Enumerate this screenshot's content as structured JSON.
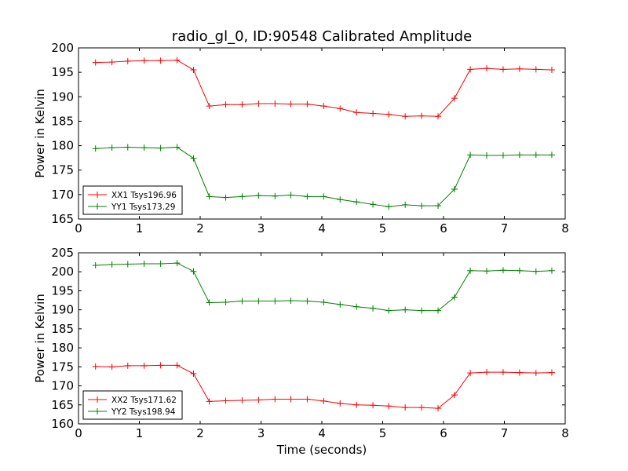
{
  "figure": {
    "title": "radio_gl_0, ID:90548 Calibrated Amplitude",
    "xlabel": "Time (seconds)"
  },
  "chart_data": [
    {
      "type": "line",
      "title": "radio_gl_0, ID:90548 Calibrated Amplitude",
      "xlabel": "",
      "ylabel": "Power in Kelvin",
      "xlim": [
        0,
        8
      ],
      "ylim": [
        165,
        200
      ],
      "xticks": [
        0,
        1,
        2,
        3,
        4,
        5,
        6,
        7,
        8
      ],
      "yticks": [
        165,
        170,
        175,
        180,
        185,
        190,
        195,
        200
      ],
      "legend_position": "lower-left",
      "grid": false,
      "x": [
        0.28,
        0.55,
        0.81,
        1.08,
        1.35,
        1.62,
        1.89,
        2.15,
        2.42,
        2.69,
        2.96,
        3.23,
        3.49,
        3.76,
        4.03,
        4.3,
        4.57,
        4.84,
        5.1,
        5.37,
        5.64,
        5.91,
        6.18,
        6.44,
        6.71,
        6.98,
        7.25,
        7.52,
        7.78
      ],
      "series": [
        {
          "name": "XX1 Tsys196.96",
          "color": "#ff0000",
          "values": [
            197.0,
            197.1,
            197.3,
            197.4,
            197.4,
            197.5,
            195.5,
            188.1,
            188.4,
            188.4,
            188.6,
            188.6,
            188.5,
            188.5,
            188.1,
            187.6,
            186.8,
            186.6,
            186.4,
            186.0,
            186.1,
            186.0,
            189.7,
            195.6,
            195.8,
            195.6,
            195.7,
            195.6,
            195.5
          ]
        },
        {
          "name": "YY1 Tsys173.29",
          "color": "#008000",
          "values": [
            179.4,
            179.6,
            179.7,
            179.6,
            179.5,
            179.7,
            177.4,
            169.6,
            169.4,
            169.6,
            169.8,
            169.7,
            169.9,
            169.6,
            169.6,
            169.0,
            168.5,
            168.0,
            167.5,
            167.9,
            167.7,
            167.7,
            171.1,
            178.1,
            178.0,
            178.0,
            178.1,
            178.1,
            178.1
          ]
        }
      ]
    },
    {
      "type": "line",
      "title": "",
      "xlabel": "Time (seconds)",
      "ylabel": "Power in Kelvin",
      "xlim": [
        0,
        8
      ],
      "ylim": [
        160,
        205
      ],
      "xticks": [
        0,
        1,
        2,
        3,
        4,
        5,
        6,
        7,
        8
      ],
      "yticks": [
        160,
        165,
        170,
        175,
        180,
        185,
        190,
        195,
        200,
        205
      ],
      "legend_position": "lower-left",
      "grid": false,
      "x": [
        0.28,
        0.55,
        0.81,
        1.08,
        1.35,
        1.62,
        1.89,
        2.15,
        2.42,
        2.69,
        2.96,
        3.23,
        3.49,
        3.76,
        4.03,
        4.3,
        4.57,
        4.84,
        5.1,
        5.37,
        5.64,
        5.91,
        6.18,
        6.44,
        6.71,
        6.98,
        7.25,
        7.52,
        7.78
      ],
      "series": [
        {
          "name": "XX2 Tsys171.62",
          "color": "#ff0000",
          "values": [
            175.1,
            175.0,
            175.3,
            175.3,
            175.4,
            175.4,
            173.2,
            165.9,
            166.1,
            166.2,
            166.3,
            166.5,
            166.5,
            166.5,
            166.0,
            165.4,
            165.0,
            164.9,
            164.7,
            164.3,
            164.3,
            164.1,
            167.6,
            173.4,
            173.6,
            173.6,
            173.5,
            173.4,
            173.5
          ]
        },
        {
          "name": "YY2 Tsys198.94",
          "color": "#008000",
          "values": [
            201.7,
            201.9,
            202.0,
            202.1,
            202.1,
            202.3,
            200.1,
            191.9,
            192.0,
            192.3,
            192.3,
            192.3,
            192.4,
            192.3,
            192.0,
            191.4,
            190.8,
            190.4,
            189.8,
            190.0,
            189.8,
            189.8,
            193.3,
            200.3,
            200.2,
            200.4,
            200.3,
            200.1,
            200.3
          ]
        }
      ]
    }
  ]
}
